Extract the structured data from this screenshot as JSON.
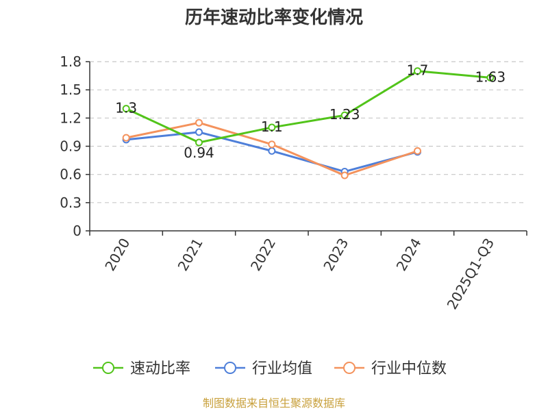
{
  "chart_data": {
    "type": "line",
    "title": "历年速动比率变化情况",
    "categories": [
      "2020",
      "2021",
      "2022",
      "2023",
      "2024",
      "2025Q1-Q3"
    ],
    "series": [
      {
        "name": "速动比率",
        "color": "#52c41a",
        "values": [
          1.3,
          0.94,
          1.1,
          1.23,
          1.7,
          1.63
        ],
        "labels": [
          "1.3",
          "0.94",
          "1.1",
          "1.23",
          "1.7",
          "1.63"
        ]
      },
      {
        "name": "行业均值",
        "color": "#4e7fd9",
        "values": [
          0.97,
          1.05,
          0.85,
          0.63,
          0.84,
          null
        ]
      },
      {
        "name": "行业中位数",
        "color": "#f4925c",
        "values": [
          0.99,
          1.15,
          0.92,
          0.59,
          0.85,
          null
        ]
      }
    ],
    "ylim": [
      0,
      1.8
    ],
    "yticks": [
      "0",
      "0.3",
      "0.6",
      "0.9",
      "1.2",
      "1.5",
      "1.8"
    ],
    "grid": true,
    "legend": "bottom"
  },
  "source": "制图数据来自恒生聚源数据库"
}
